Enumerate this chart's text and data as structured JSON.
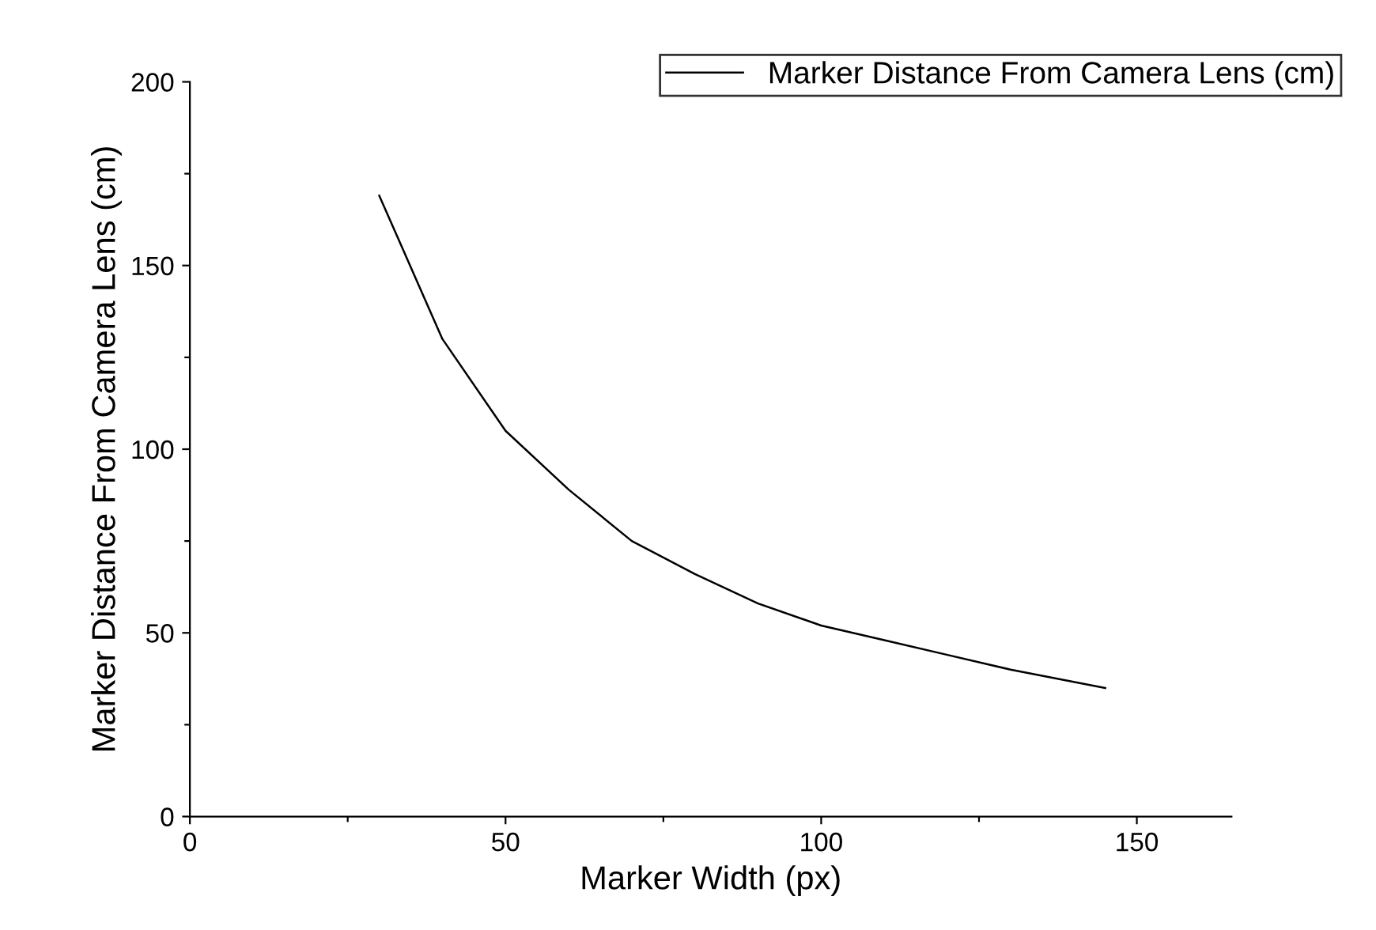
{
  "chart_data": {
    "type": "line",
    "xlabel": "Marker Width (px)",
    "ylabel": "Marker Distance From Camera Lens (cm)",
    "x": [
      30,
      40,
      50,
      60,
      70,
      80,
      90,
      100,
      110,
      120,
      130,
      145
    ],
    "series": [
      {
        "name": "Marker Distance From Camera Lens (cm)",
        "color": "#000000",
        "values": [
          169,
          130,
          105,
          89,
          75,
          66,
          58,
          52,
          48,
          44,
          40,
          35
        ]
      }
    ],
    "xlim": [
      0,
      165
    ],
    "ylim": [
      0,
      200
    ],
    "xticks": [
      0,
      {
        "value": 25,
        "label": null
      },
      50,
      {
        "value": 75,
        "label": null
      },
      100,
      {
        "value": 125,
        "label": null
      },
      150
    ],
    "yticks": [
      0,
      {
        "value": 25,
        "label": null
      },
      50,
      {
        "value": 75,
        "label": null
      },
      100,
      {
        "value": 125,
        "label": null
      },
      150,
      {
        "value": 175,
        "label": null
      },
      200
    ],
    "grid": false,
    "legend": "top right",
    "marker": "none",
    "line_style": "solid"
  }
}
